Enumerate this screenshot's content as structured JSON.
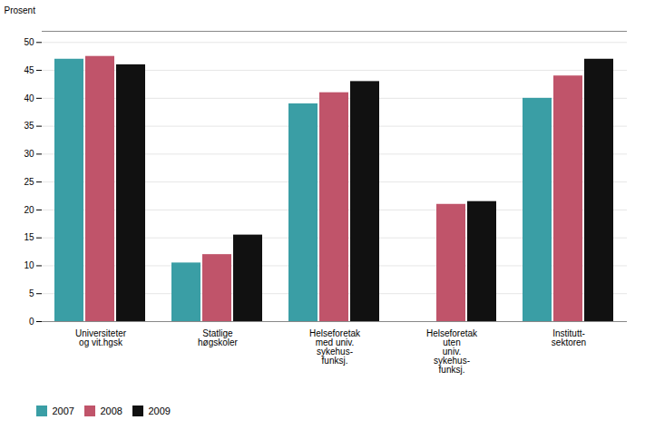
{
  "chart_data": {
    "type": "bar",
    "ylabel": "Prosent",
    "categories": [
      "Universiteter\nog vit.hgsk",
      "Statlige\nhøgskoler",
      "Helseforetak\nmed univ.\nsykehus-\nfunksj.",
      "Helseforetak\nuten\nuniv.\nsykehus-\nfunksj.",
      "Institutt-\nsektoren"
    ],
    "series": [
      {
        "name": "2007",
        "color": "#3a9ea5",
        "values": [
          47,
          10.5,
          39,
          0,
          40
        ]
      },
      {
        "name": "2008",
        "color": "#c0546a",
        "values": [
          47.5,
          12,
          41,
          21,
          44
        ]
      },
      {
        "name": "2009",
        "color": "#111111",
        "values": [
          46,
          15.5,
          43,
          21.5,
          47
        ]
      }
    ],
    "ylim": [
      0,
      52
    ],
    "yticks": [
      0,
      5,
      10,
      15,
      20,
      25,
      30,
      35,
      40,
      45,
      50
    ],
    "grid": true,
    "legend": "lower left"
  }
}
